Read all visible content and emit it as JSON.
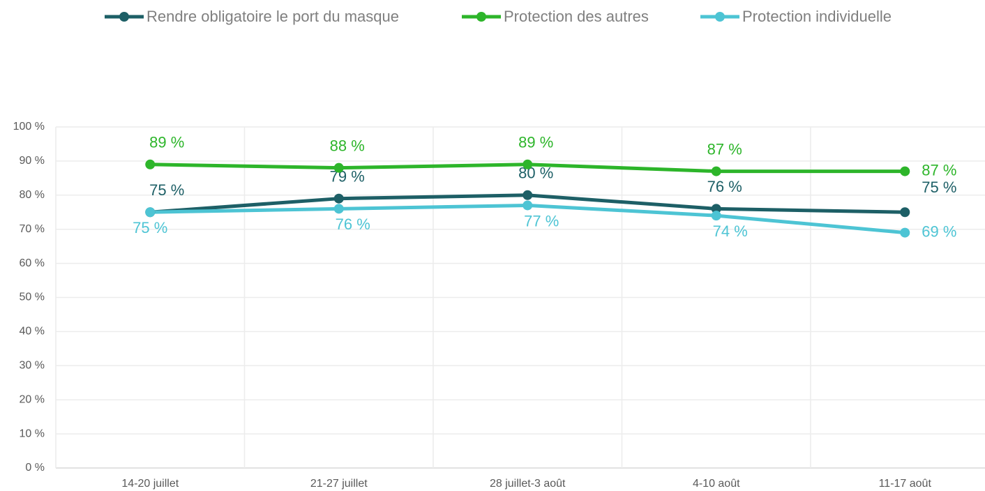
{
  "chart_data": {
    "type": "line",
    "categories": [
      "14-20 juillet",
      "21-27 juillet",
      "28 juillet-3 août",
      "4-10 août",
      "11-17 août"
    ],
    "series": [
      {
        "name": "Rendre obligatoire le port du masque",
        "color": "#1d5f66",
        "values": [
          75,
          79,
          80,
          76,
          75
        ],
        "value_labels": [
          "75 %",
          "79 %",
          "80 %",
          "76 %",
          "75 %"
        ]
      },
      {
        "name": "Protection des autres",
        "color": "#2db52a",
        "values": [
          89,
          88,
          89,
          87,
          87
        ],
        "value_labels": [
          "89 %",
          "88 %",
          "89 %",
          "87 %",
          "87 %"
        ]
      },
      {
        "name": "Protection individuelle",
        "color": "#4dc4d4",
        "values": [
          75,
          76,
          77,
          74,
          69
        ],
        "value_labels": [
          "75 %",
          "76 %",
          "77 %",
          "74 %",
          "69 %"
        ]
      }
    ],
    "ylim": [
      0,
      100
    ],
    "yticks": [
      {
        "value": 0,
        "label": "0 %"
      },
      {
        "value": 10,
        "label": "10 %"
      },
      {
        "value": 20,
        "label": "20 %"
      },
      {
        "value": 30,
        "label": "30 %"
      },
      {
        "value": 40,
        "label": "40 %"
      },
      {
        "value": 50,
        "label": "50 %"
      },
      {
        "value": 60,
        "label": "60 %"
      },
      {
        "value": 70,
        "label": "70 %"
      },
      {
        "value": 80,
        "label": "80 %"
      },
      {
        "value": 90,
        "label": "90 %"
      },
      {
        "value": 100,
        "label": "100 %"
      }
    ],
    "grid": true,
    "legend": "top"
  }
}
